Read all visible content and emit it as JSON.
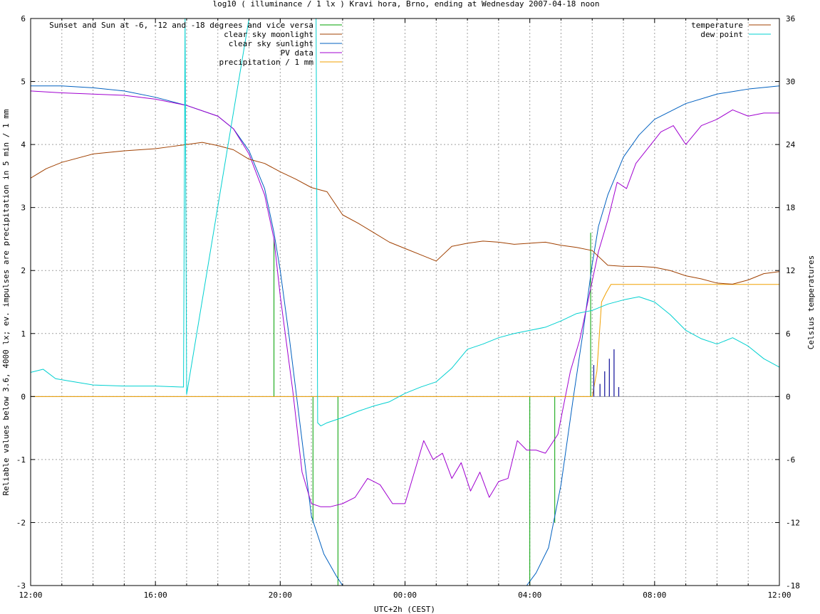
{
  "chart_data": {
    "type": "line",
    "title": "log10 ( illuminance / 1 lx ) Kravi hora, Brno, ending at Wednesday 2007-04-18 noon",
    "xlabel": "UTC+2h (CEST)",
    "ylabel": "Reliable values below 3.6, 4000 lx; ev. impulses are precipitation in 5 min / 1 mm",
    "y2label": "Celsius temperatures",
    "xlim": [
      12,
      36
    ],
    "ylim": [
      -3,
      6
    ],
    "y2lim": [
      -18,
      36
    ],
    "grid": true,
    "legend_left_placement": "top-left",
    "legend_right_placement": "top-right",
    "x_tick_labels": [
      "12:00",
      "16:00",
      "20:00",
      "00:00",
      "04:00",
      "08:00",
      "12:00"
    ],
    "x_tick_values": [
      12,
      16,
      20,
      24,
      28,
      32,
      36
    ],
    "y_tick_labels": [
      "-3",
      "-2",
      "-1",
      "0",
      "1",
      "2",
      "3",
      "4",
      "5",
      "6"
    ],
    "y_tick_values": [
      -3,
      -2,
      -1,
      0,
      1,
      2,
      3,
      4,
      5,
      6
    ],
    "y2_tick_labels": [
      "-18",
      "-12",
      "-6",
      "0",
      "6",
      "12",
      "18",
      "24",
      "30",
      "36"
    ],
    "y2_tick_values": [
      -18,
      -12,
      -6,
      0,
      6,
      12,
      18,
      24,
      30,
      36
    ],
    "series": [
      {
        "name": "Sunset and Sun at -6, -12 and -18 degrees and vice versa",
        "color": "#00a000",
        "axis": "y",
        "style": "impulse",
        "impulses": [
          [
            19.8,
            2.5
          ],
          [
            21.05,
            -2.0
          ],
          [
            21.85,
            -3.0
          ],
          [
            28.0,
            -3.0
          ],
          [
            28.8,
            -2.0
          ],
          [
            29.95,
            2.6
          ]
        ]
      },
      {
        "name": "clear sky moonlight",
        "color": "#a04000",
        "axis": "y",
        "style": "line",
        "x": [],
        "y": []
      },
      {
        "name": "clear sky sunlight",
        "color": "#0060c0",
        "axis": "y",
        "style": "line",
        "x": [
          12,
          13,
          14,
          15,
          16,
          17,
          18,
          18.5,
          19,
          19.5,
          19.8,
          20,
          20.3,
          20.6,
          21,
          21.4,
          21.8,
          22.0,
          27.9,
          28.2,
          28.6,
          29,
          29.4,
          29.7,
          30,
          30.2,
          30.5,
          31,
          31.5,
          32,
          33,
          34,
          35,
          36
        ],
        "y": [
          4.93,
          4.93,
          4.9,
          4.85,
          4.75,
          4.62,
          4.45,
          4.25,
          3.9,
          3.3,
          2.6,
          2.0,
          0.9,
          -0.3,
          -1.9,
          -2.5,
          -2.85,
          -3.0,
          -3.0,
          -2.8,
          -2.4,
          -1.4,
          0.0,
          1.0,
          2.1,
          2.7,
          3.2,
          3.8,
          4.15,
          4.4,
          4.65,
          4.8,
          4.88,
          4.93
        ]
      },
      {
        "name": "PV data",
        "color": "#a000d0",
        "axis": "y",
        "style": "line",
        "x": [
          12,
          13,
          14,
          15,
          16,
          17,
          18,
          18.5,
          19,
          19.5,
          19.8,
          20,
          20.4,
          20.7,
          21.0,
          21.3,
          21.6,
          22.0,
          22.4,
          22.8,
          23.2,
          23.6,
          24.0,
          24.3,
          24.6,
          24.9,
          25.2,
          25.5,
          25.8,
          26.1,
          26.4,
          26.7,
          27.0,
          27.3,
          27.6,
          27.9,
          28.2,
          28.5,
          28.9,
          29.3,
          29.6,
          29.9,
          30.2,
          30.5,
          30.8,
          31.1,
          31.4,
          31.8,
          32.2,
          32.6,
          33.0,
          33.5,
          34.0,
          34.5,
          35.0,
          35.5,
          36
        ],
        "y": [
          4.85,
          4.82,
          4.8,
          4.78,
          4.72,
          4.62,
          4.45,
          4.25,
          3.85,
          3.2,
          2.5,
          1.6,
          0.1,
          -1.2,
          -1.7,
          -1.75,
          -1.75,
          -1.7,
          -1.6,
          -1.3,
          -1.4,
          -1.7,
          -1.7,
          -1.2,
          -0.7,
          -1.0,
          -0.9,
          -1.3,
          -1.05,
          -1.5,
          -1.2,
          -1.6,
          -1.35,
          -1.3,
          -0.7,
          -0.85,
          -0.85,
          -0.9,
          -0.6,
          0.4,
          0.9,
          1.6,
          2.3,
          2.8,
          3.4,
          3.3,
          3.7,
          3.95,
          4.2,
          4.3,
          4.0,
          4.3,
          4.4,
          4.55,
          4.45,
          4.5,
          4.5
        ]
      },
      {
        "name": "precipitation / 1 mm",
        "color": "#f0a000",
        "axis": "y",
        "style": "line",
        "x": [
          12,
          30.0,
          30.15,
          30.3,
          30.45,
          30.6,
          36
        ],
        "y": [
          0,
          0,
          0.4,
          1.5,
          1.65,
          1.78,
          1.78
        ]
      },
      {
        "name": "temperature",
        "color": "#a04000",
        "axis": "y2",
        "style": "line",
        "x": [
          12,
          12.5,
          13,
          14,
          15,
          16,
          16.5,
          17,
          17.5,
          18,
          18.5,
          19,
          19.5,
          20,
          20.5,
          21,
          21.5,
          22,
          22.5,
          23,
          23.5,
          24,
          24.5,
          25,
          25.5,
          26,
          26.5,
          27,
          27.5,
          28,
          28.5,
          29,
          29.5,
          30,
          30.5,
          31,
          31.5,
          32,
          32.5,
          33,
          33.5,
          34,
          34.5,
          35,
          35.5,
          36
        ],
        "y": [
          20.8,
          21.7,
          22.3,
          23.1,
          23.4,
          23.6,
          23.8,
          24.0,
          24.2,
          23.9,
          23.5,
          22.6,
          22.2,
          21.4,
          20.7,
          19.9,
          19.5,
          17.3,
          16.5,
          15.6,
          14.7,
          14.1,
          13.5,
          12.9,
          14.3,
          14.6,
          14.8,
          14.7,
          14.5,
          14.6,
          14.7,
          14.4,
          14.2,
          13.9,
          12.5,
          12.4,
          12.4,
          12.3,
          12.0,
          11.5,
          11.2,
          10.8,
          10.7,
          11.1,
          11.7,
          11.9
        ]
      },
      {
        "name": "dew point",
        "color": "#00d0d0",
        "axis": "y2",
        "style": "line",
        "x": [
          12,
          12.4,
          12.8,
          13.2,
          14,
          15,
          16,
          16.9,
          16.95,
          17.0,
          19,
          21.0,
          21.15,
          21.2,
          21.3,
          21.5,
          22,
          22.5,
          23,
          23.5,
          24,
          24.5,
          25,
          25.5,
          26,
          26.5,
          27,
          27.5,
          28,
          28.5,
          29,
          29.5,
          30,
          30.5,
          31,
          31.5,
          32,
          32.5,
          33,
          33.5,
          34,
          34.5,
          35,
          35.5,
          36
        ],
        "y": [
          2.3,
          2.6,
          1.7,
          1.5,
          1.1,
          1.0,
          1.0,
          0.9,
          36,
          0.2,
          36,
          36,
          36,
          -2.5,
          -2.8,
          -2.5,
          -2.0,
          -1.4,
          -0.9,
          -0.5,
          0.3,
          0.9,
          1.4,
          2.7,
          4.5,
          5.0,
          5.6,
          6.0,
          6.3,
          6.6,
          7.2,
          7.9,
          8.2,
          8.8,
          9.2,
          9.5,
          9.0,
          7.8,
          6.3,
          5.5,
          5.0,
          5.6,
          4.8,
          3.6,
          2.8
        ]
      }
    ],
    "precipitation_impulses_mm": [
      {
        "x": 30.05,
        "y": 0.5
      },
      {
        "x": 30.25,
        "y": 0.2
      },
      {
        "x": 30.4,
        "y": 0.4
      },
      {
        "x": 30.55,
        "y": 0.6
      },
      {
        "x": 30.7,
        "y": 0.75
      },
      {
        "x": 30.85,
        "y": 0.15
      }
    ]
  }
}
